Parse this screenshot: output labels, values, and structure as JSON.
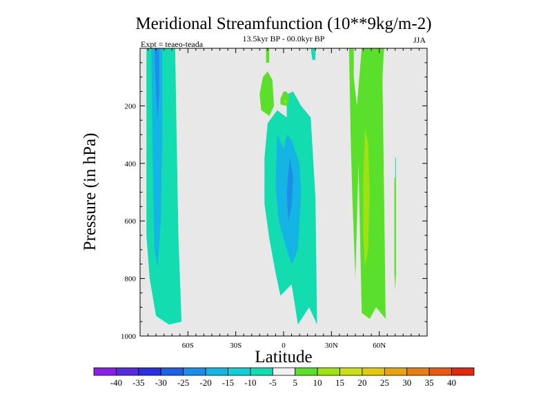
{
  "chart_data": {
    "type": "heatmap",
    "title": "Meridional Streamfunction (10**9kg/m-2)",
    "subtitle": "13.5kyr BP - 00.0kyr BP",
    "left_note": "Expt = teaeo-teada",
    "right_note": "JJA",
    "xlabel": "Latitude",
    "ylabel": "Pressure (in hPa)",
    "xlim": [
      -90,
      90
    ],
    "ylim": [
      1000,
      0
    ],
    "x_ticks": [
      {
        "value": -60,
        "label": "60S"
      },
      {
        "value": -30,
        "label": "30S"
      },
      {
        "value": 0,
        "label": "0"
      },
      {
        "value": 30,
        "label": "30N"
      },
      {
        "value": 60,
        "label": "60N"
      }
    ],
    "y_ticks": [
      {
        "value": 200,
        "label": "200"
      },
      {
        "value": 400,
        "label": "400"
      },
      {
        "value": 600,
        "label": "600"
      },
      {
        "value": 800,
        "label": "800"
      },
      {
        "value": 1000,
        "label": "1000"
      }
    ],
    "colorbar": {
      "labels": [
        "-40",
        "-35",
        "-30",
        "-25",
        "-20",
        "-15",
        "-10",
        "-5",
        "5",
        "10",
        "15",
        "20",
        "25",
        "30",
        "35",
        "40"
      ],
      "colors": [
        "#8a1ee6",
        "#5a2ae0",
        "#2a30e0",
        "#1e60e6",
        "#1a8ee8",
        "#14b4e4",
        "#10cfd6",
        "#12dcb0",
        "#f0f0f0",
        "#5ae02a",
        "#9ee214",
        "#c8e014",
        "#e2c810",
        "#e8a410",
        "#e87e10",
        "#e85a10",
        "#e02a10"
      ]
    },
    "background_color": "#e8e8e8",
    "regions": [
      {
        "name": "SH high-latitude negative cell",
        "level": "-10",
        "color": "#12dcb0",
        "polygon": [
          [
            -86,
            0
          ],
          [
            -68,
            0
          ],
          [
            -66,
            650
          ],
          [
            -64,
            950
          ],
          [
            -72,
            960
          ],
          [
            -80,
            930
          ],
          [
            -84,
            800
          ],
          [
            -86,
            650
          ]
        ]
      },
      {
        "name": "SH high-latitude core",
        "level": "-15",
        "color": "#14b4e4",
        "polygon": [
          [
            -83,
            0
          ],
          [
            -76,
            0
          ],
          [
            -76,
            300
          ],
          [
            -77,
            600
          ],
          [
            -79,
            760
          ],
          [
            -81,
            700
          ],
          [
            -82,
            400
          ]
        ]
      },
      {
        "name": "SH high-latitude inner core",
        "level": "-20",
        "color": "#1a8ee8",
        "polygon": [
          [
            -81,
            0
          ],
          [
            -78,
            0
          ],
          [
            -78,
            150
          ],
          [
            -79,
            250
          ],
          [
            -80,
            150
          ]
        ]
      },
      {
        "name": "Tropical negative cell",
        "level": "-10",
        "color": "#12dcb0",
        "polygon": [
          [
            -10,
            260
          ],
          [
            -4,
            215
          ],
          [
            2,
            240
          ],
          [
            2,
            160
          ],
          [
            6,
            150
          ],
          [
            11,
            200
          ],
          [
            17,
            240
          ],
          [
            20,
            520
          ],
          [
            21,
            960
          ],
          [
            16,
            900
          ],
          [
            9,
            960
          ],
          [
            5,
            820
          ],
          [
            -2,
            860
          ],
          [
            -5,
            780
          ],
          [
            -9,
            660
          ],
          [
            -12,
            540
          ],
          [
            -12,
            380
          ]
        ]
      },
      {
        "name": "Tropical core",
        "level": "-15",
        "color": "#14b4e4",
        "polygon": [
          [
            -4,
            300
          ],
          [
            0,
            350
          ],
          [
            2,
            300
          ],
          [
            5,
            320
          ],
          [
            10,
            400
          ],
          [
            11,
            500
          ],
          [
            9,
            700
          ],
          [
            5,
            750
          ],
          [
            1,
            680
          ],
          [
            -3,
            600
          ],
          [
            -5,
            480
          ]
        ]
      },
      {
        "name": "Tropical inner core",
        "level": "-20",
        "color": "#1a8ee8",
        "polygon": [
          [
            4,
            380
          ],
          [
            6,
            450
          ],
          [
            5,
            550
          ],
          [
            3,
            600
          ],
          [
            2,
            500
          ],
          [
            3,
            430
          ]
        ]
      },
      {
        "name": "Small negative cell near equator",
        "level": "-10",
        "color": "#12dcb0",
        "polygon": [
          [
            17,
            0
          ],
          [
            20,
            0
          ],
          [
            20,
            40
          ],
          [
            18,
            40
          ]
        ]
      },
      {
        "name": "SH subtropical positive cell",
        "level": "5",
        "color": "#5ae02a",
        "polygon": [
          [
            -13,
            100
          ],
          [
            -10,
            80
          ],
          [
            -7,
            110
          ],
          [
            -6,
            200
          ],
          [
            -9,
            235
          ],
          [
            -14,
            215
          ],
          [
            -15,
            160
          ]
        ]
      },
      {
        "name": "Upper equatorial positive cell",
        "level": "5",
        "color": "#5ae02a",
        "polygon": [
          [
            0,
            150
          ],
          [
            -2,
            175
          ],
          [
            -2,
            195
          ],
          [
            2,
            200
          ],
          [
            4,
            175
          ],
          [
            2,
            150
          ]
        ]
      },
      {
        "name": "Upper equatorial inner",
        "level": "10",
        "color": "#9ee214",
        "polygon": [
          [
            1,
            175
          ],
          [
            0.5,
            185
          ],
          [
            1,
            195
          ],
          [
            2,
            185
          ]
        ]
      },
      {
        "name": "Small positive cell near top",
        "level": "5",
        "color": "#5ae02a",
        "polygon": [
          [
            -11,
            0
          ],
          [
            -9,
            0
          ],
          [
            -9,
            50
          ],
          [
            -11,
            50
          ]
        ]
      },
      {
        "name": "NH mid-latitude positive cell",
        "level": "5",
        "color": "#5ae02a",
        "polygon": [
          [
            41,
            0
          ],
          [
            44,
            0
          ],
          [
            44,
            100
          ],
          [
            46,
            200
          ],
          [
            49,
            0
          ],
          [
            63,
            0
          ],
          [
            62,
            100
          ],
          [
            63,
            500
          ],
          [
            64,
            940
          ],
          [
            58,
            900
          ],
          [
            54,
            940
          ],
          [
            49,
            920
          ],
          [
            47,
            400
          ],
          [
            45,
            800
          ],
          [
            43,
            500
          ],
          [
            42,
            300
          ]
        ]
      },
      {
        "name": "NH mid-latitude core",
        "level": "10",
        "color": "#9ee214",
        "polygon": [
          [
            51,
            280
          ],
          [
            53,
            330
          ],
          [
            54,
            500
          ],
          [
            53,
            700
          ],
          [
            51,
            760
          ],
          [
            50,
            650
          ],
          [
            50,
            450
          ]
        ]
      },
      {
        "name": "NH high-latitude thin cell",
        "level": "5",
        "color": "#5ae02a",
        "polygon": [
          [
            69.5,
            450
          ],
          [
            70.5,
            450
          ],
          [
            70.5,
            780
          ],
          [
            70,
            840
          ],
          [
            69.5,
            780
          ]
        ]
      },
      {
        "name": "Thin NH high-latitude strip",
        "level": "-10",
        "color": "#12dcb0",
        "polygon": [
          [
            70,
            380
          ],
          [
            70.5,
            380
          ],
          [
            70.5,
            450
          ],
          [
            70,
            450
          ]
        ]
      }
    ]
  }
}
